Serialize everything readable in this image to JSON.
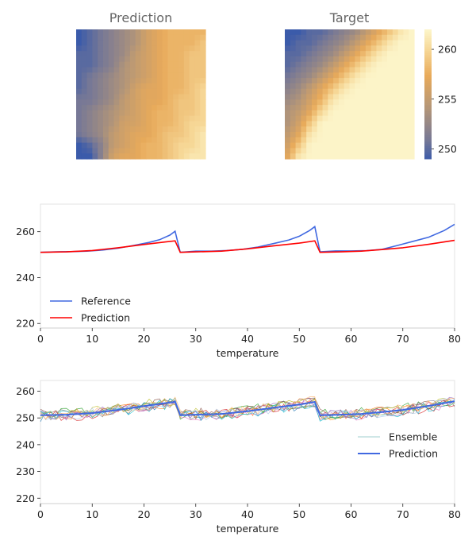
{
  "chart_data": [
    {
      "type": "heatmap",
      "title": "Prediction",
      "grid": [
        [
          249,
          250,
          251,
          252,
          253,
          254,
          256,
          257,
          258,
          258,
          258,
          258
        ],
        [
          249,
          250,
          251,
          252,
          253,
          254,
          256,
          257,
          258,
          258,
          258,
          259
        ],
        [
          250,
          250,
          251,
          252,
          253,
          255,
          256,
          257,
          258,
          258,
          259,
          259
        ],
        [
          250,
          250,
          251,
          252,
          254,
          255,
          256,
          257,
          258,
          258,
          259,
          259
        ],
        [
          250,
          251,
          252,
          253,
          254,
          255,
          256,
          257,
          258,
          258,
          259,
          259
        ],
        [
          250,
          251,
          252,
          253,
          254,
          256,
          257,
          257,
          258,
          258,
          259,
          260
        ],
        [
          251,
          251,
          252,
          253,
          255,
          256,
          257,
          257,
          258,
          259,
          259,
          260
        ],
        [
          251,
          252,
          253,
          254,
          255,
          256,
          257,
          258,
          258,
          259,
          259,
          260
        ],
        [
          251,
          252,
          253,
          254,
          256,
          256,
          257,
          258,
          258,
          259,
          260,
          260
        ],
        [
          251,
          252,
          253,
          255,
          256,
          257,
          257,
          258,
          259,
          259,
          260,
          261
        ],
        [
          249,
          250,
          252,
          255,
          256,
          257,
          258,
          258,
          259,
          260,
          260,
          261
        ],
        [
          249,
          249,
          252,
          256,
          257,
          257,
          258,
          258,
          259,
          260,
          261,
          261
        ]
      ]
    },
    {
      "type": "heatmap",
      "title": "Target",
      "colorbar": {
        "ticks": [
          250,
          255,
          260
        ],
        "range": [
          249,
          262
        ]
      },
      "grid": [
        [
          249,
          249,
          250,
          250,
          251,
          252,
          253,
          255,
          257,
          259,
          261,
          262
        ],
        [
          249,
          250,
          250,
          251,
          252,
          253,
          255,
          257,
          259,
          261,
          262,
          262
        ],
        [
          250,
          250,
          251,
          252,
          253,
          255,
          257,
          259,
          261,
          262,
          262,
          262
        ],
        [
          250,
          251,
          252,
          253,
          255,
          257,
          259,
          261,
          262,
          262,
          262,
          262
        ],
        [
          251,
          252,
          253,
          255,
          257,
          259,
          261,
          262,
          262,
          262,
          262,
          262
        ],
        [
          252,
          253,
          255,
          257,
          259,
          261,
          262,
          262,
          262,
          262,
          262,
          262
        ],
        [
          253,
          254,
          256,
          258,
          261,
          262,
          262,
          262,
          262,
          262,
          262,
          262
        ],
        [
          254,
          255,
          257,
          260,
          262,
          262,
          262,
          262,
          262,
          262,
          262,
          262
        ],
        [
          254,
          256,
          259,
          262,
          262,
          262,
          262,
          262,
          262,
          262,
          262,
          262
        ],
        [
          255,
          257,
          261,
          262,
          262,
          262,
          262,
          262,
          262,
          262,
          262,
          262
        ],
        [
          256,
          259,
          262,
          262,
          262,
          262,
          262,
          262,
          262,
          262,
          262,
          262
        ],
        [
          257,
          261,
          262,
          262,
          262,
          262,
          262,
          262,
          262,
          262,
          262,
          262
        ]
      ]
    },
    {
      "type": "line",
      "xlabel": "temperature",
      "xlim": [
        0,
        80
      ],
      "ylim": [
        218,
        272
      ],
      "xticks": [
        0,
        10,
        20,
        30,
        40,
        50,
        60,
        70,
        80
      ],
      "yticks": [
        220,
        240,
        260
      ],
      "legend": "lower-left",
      "series": [
        {
          "name": "Reference",
          "color": "#4169e1",
          "points": [
            [
              0,
              251.0
            ],
            [
              3,
              251.2
            ],
            [
              6,
              251.3
            ],
            [
              9,
              251.5
            ],
            [
              12,
              252.0
            ],
            [
              15,
              252.8
            ],
            [
              18,
              254.0
            ],
            [
              21,
              255.3
            ],
            [
              23,
              256.5
            ],
            [
              25,
              258.5
            ],
            [
              26,
              260.2
            ],
            [
              27,
              251.0
            ],
            [
              30,
              251.5
            ],
            [
              33,
              251.5
            ],
            [
              36,
              251.8
            ],
            [
              39,
              252.3
            ],
            [
              42,
              253.3
            ],
            [
              45,
              254.8
            ],
            [
              48,
              256.4
            ],
            [
              50,
              258.0
            ],
            [
              52,
              260.5
            ],
            [
              53,
              262.2
            ],
            [
              54,
              251.2
            ],
            [
              57,
              251.6
            ],
            [
              60,
              251.6
            ],
            [
              63,
              251.7
            ],
            [
              66,
              252.3
            ],
            [
              69,
              254.0
            ],
            [
              72,
              255.8
            ],
            [
              75,
              257.6
            ],
            [
              78,
              260.5
            ],
            [
              80,
              263.2
            ]
          ]
        },
        {
          "name": "Prediction",
          "color": "#ff0000",
          "points": [
            [
              0,
              251.0
            ],
            [
              5,
              251.2
            ],
            [
              10,
              251.8
            ],
            [
              15,
              253.0
            ],
            [
              20,
              254.4
            ],
            [
              24,
              255.5
            ],
            [
              26,
              256.0
            ],
            [
              27,
              251.0
            ],
            [
              30,
              251.2
            ],
            [
              35,
              251.5
            ],
            [
              40,
              252.5
            ],
            [
              45,
              253.8
            ],
            [
              50,
              255.0
            ],
            [
              53,
              256.0
            ],
            [
              54,
              251.0
            ],
            [
              58,
              251.2
            ],
            [
              62,
              251.5
            ],
            [
              66,
              252.2
            ],
            [
              70,
              253.0
            ],
            [
              75,
              254.5
            ],
            [
              80,
              256.2
            ]
          ]
        }
      ]
    },
    {
      "type": "line",
      "xlabel": "temperature",
      "xlim": [
        0,
        80
      ],
      "ylim": [
        218,
        264
      ],
      "xticks": [
        0,
        10,
        20,
        30,
        40,
        50,
        60,
        70,
        80
      ],
      "yticks": [
        220,
        230,
        240,
        250,
        260
      ],
      "legend": "center-right",
      "ensemble_members": 12,
      "ensemble_colors": [
        "#1f77b4",
        "#ff7f0e",
        "#2ca02c",
        "#d62728",
        "#9467bd",
        "#8c564b",
        "#e377c2",
        "#7f7f7f",
        "#bcbd22",
        "#17becf",
        "#aec7e8",
        "#ffbb78"
      ],
      "ensemble_label": "Ensemble",
      "series": [
        {
          "name": "Prediction",
          "color": "#4169e1",
          "points": [
            [
              0,
              251.0
            ],
            [
              5,
              251.2
            ],
            [
              10,
              251.8
            ],
            [
              15,
              253.0
            ],
            [
              20,
              254.4
            ],
            [
              24,
              255.5
            ],
            [
              26,
              256.0
            ],
            [
              27,
              251.0
            ],
            [
              30,
              251.2
            ],
            [
              35,
              251.5
            ],
            [
              40,
              252.5
            ],
            [
              45,
              253.8
            ],
            [
              50,
              255.0
            ],
            [
              53,
              256.0
            ],
            [
              54,
              251.0
            ],
            [
              58,
              251.2
            ],
            [
              62,
              251.5
            ],
            [
              66,
              252.2
            ],
            [
              70,
              253.0
            ],
            [
              75,
              254.5
            ],
            [
              80,
              256.2
            ]
          ]
        }
      ]
    }
  ]
}
